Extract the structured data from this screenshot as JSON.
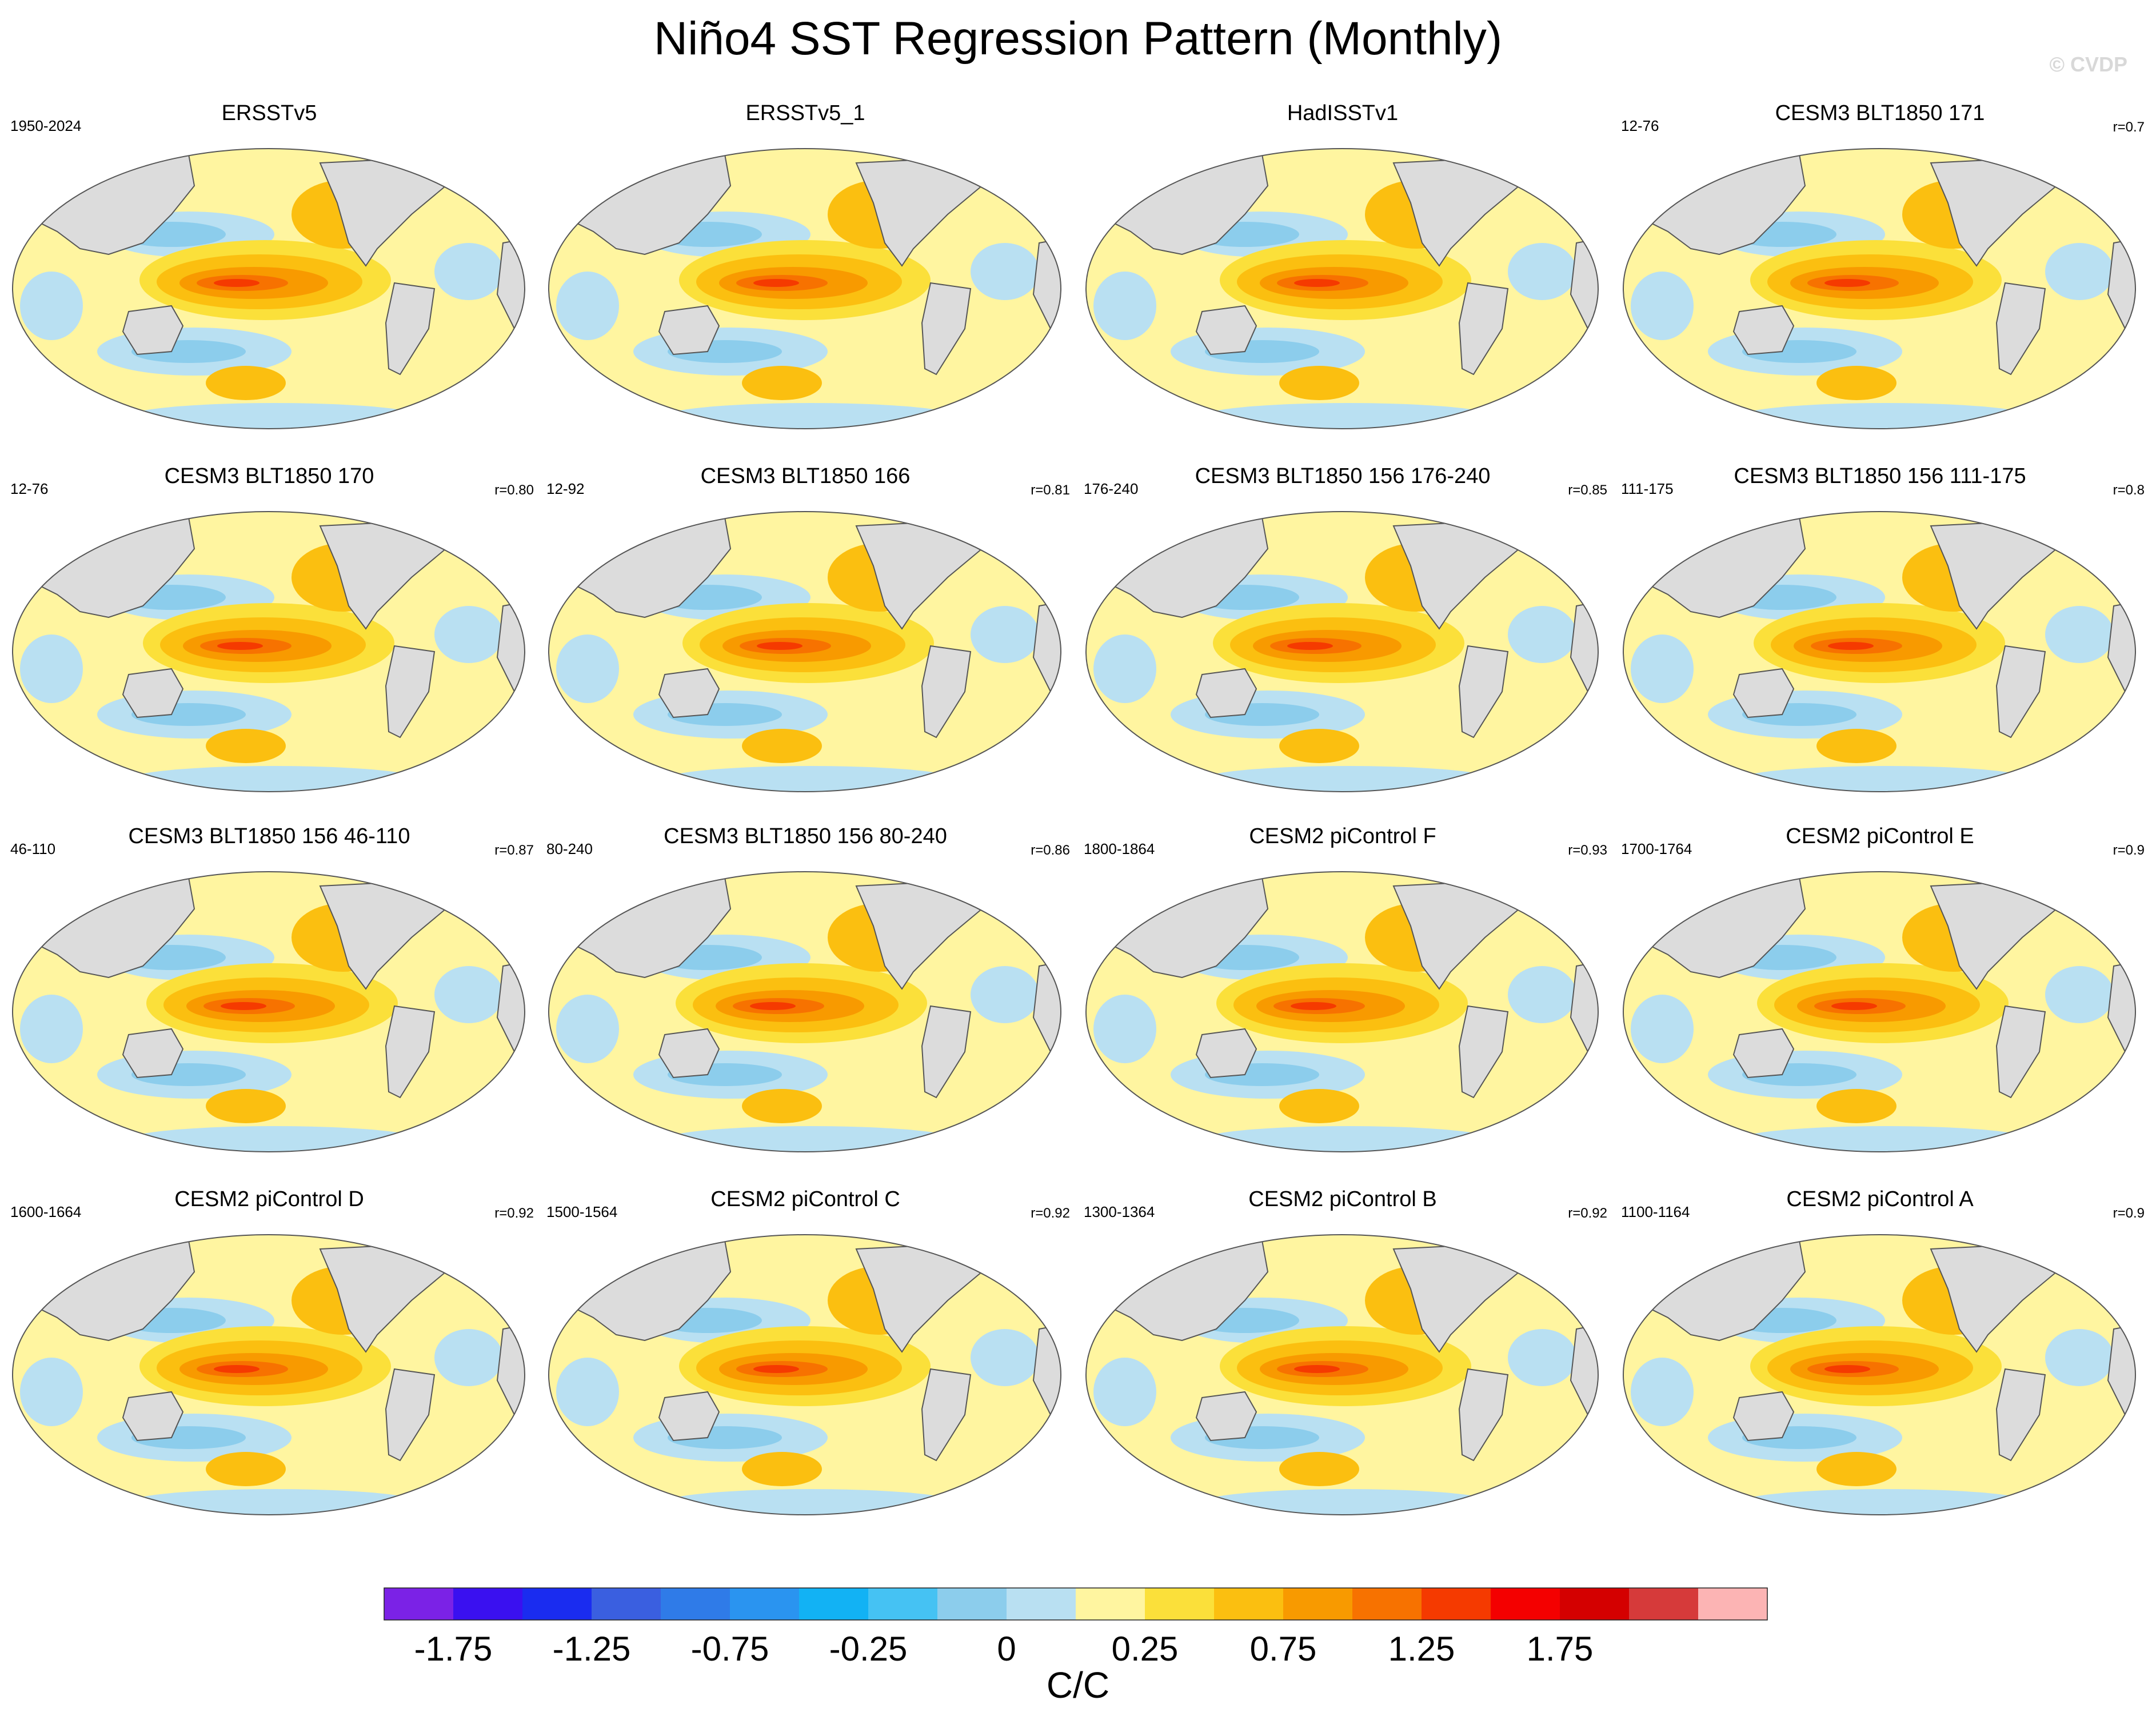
{
  "title": "Niño4 SST Regression Pattern (Monthly)",
  "watermark": "© CVDP",
  "panels": [
    {
      "title": "ERSSTv5",
      "period": "1950-2024",
      "r": ""
    },
    {
      "title": "ERSSTv5_1",
      "period": "",
      "r": ""
    },
    {
      "title": "HadISSTv1",
      "period": "",
      "r": ""
    },
    {
      "title": "CESM3 BLT1850 171",
      "period": "12-76",
      "r": "r=0.7"
    },
    {
      "title": "CESM3 BLT1850 170",
      "period": "12-76",
      "r": "r=0.80"
    },
    {
      "title": "CESM3 BLT1850 166",
      "period": "12-92",
      "r": "r=0.81"
    },
    {
      "title": "CESM3 BLT1850 156 176-240",
      "period": "176-240",
      "r": "r=0.85"
    },
    {
      "title": "CESM3 BLT1850 156 111-175",
      "period": "111-175",
      "r": "r=0.8"
    },
    {
      "title": "CESM3 BLT1850 156 46-110",
      "period": "46-110",
      "r": "r=0.87"
    },
    {
      "title": "CESM3 BLT1850 156 80-240",
      "period": "80-240",
      "r": "r=0.86"
    },
    {
      "title": "CESM2 piControl F",
      "period": "1800-1864",
      "r": "r=0.93"
    },
    {
      "title": "CESM2 piControl E",
      "period": "1700-1764",
      "r": "r=0.9"
    },
    {
      "title": "CESM2 piControl D",
      "period": "1600-1664",
      "r": "r=0.92"
    },
    {
      "title": "CESM2 piControl C",
      "period": "1500-1564",
      "r": "r=0.92"
    },
    {
      "title": "CESM2 piControl B",
      "period": "1300-1364",
      "r": "r=0.92"
    },
    {
      "title": "CESM2 piControl A",
      "period": "1100-1164",
      "r": "r=0.9"
    }
  ],
  "chart_data": {
    "type": "heatmap",
    "projection": "Robinson, Pacific-centered",
    "field": "SST regression onto Niño4 index",
    "colorbar": {
      "label": "C/C",
      "levels": [
        -2.0,
        -1.75,
        -1.5,
        -1.25,
        -1.0,
        -0.75,
        -0.5,
        -0.25,
        -0.1,
        0,
        0.1,
        0.25,
        0.5,
        0.75,
        1.0,
        1.25,
        1.5,
        1.75,
        2.0
      ],
      "tick_labels": [
        "-1.75",
        "-1.25",
        "-0.75",
        "-0.25",
        "0",
        "0.25",
        "0.75",
        "1.25",
        "1.75"
      ],
      "colors": [
        "#7b22e6",
        "#3a10f0",
        "#1a2cf0",
        "#3a5fe0",
        "#2f7be8",
        "#2a94f0",
        "#12b2f4",
        "#45c2f3",
        "#8ccdec",
        "#b9e0f2",
        "#fff5a0",
        "#fbe03a",
        "#fbbf10",
        "#f89a00",
        "#f77200",
        "#f53a00",
        "#f40000",
        "#d40000",
        "#d63a3a",
        "#fcb4b4"
      ]
    },
    "land_color": "#dcdcdc"
  }
}
